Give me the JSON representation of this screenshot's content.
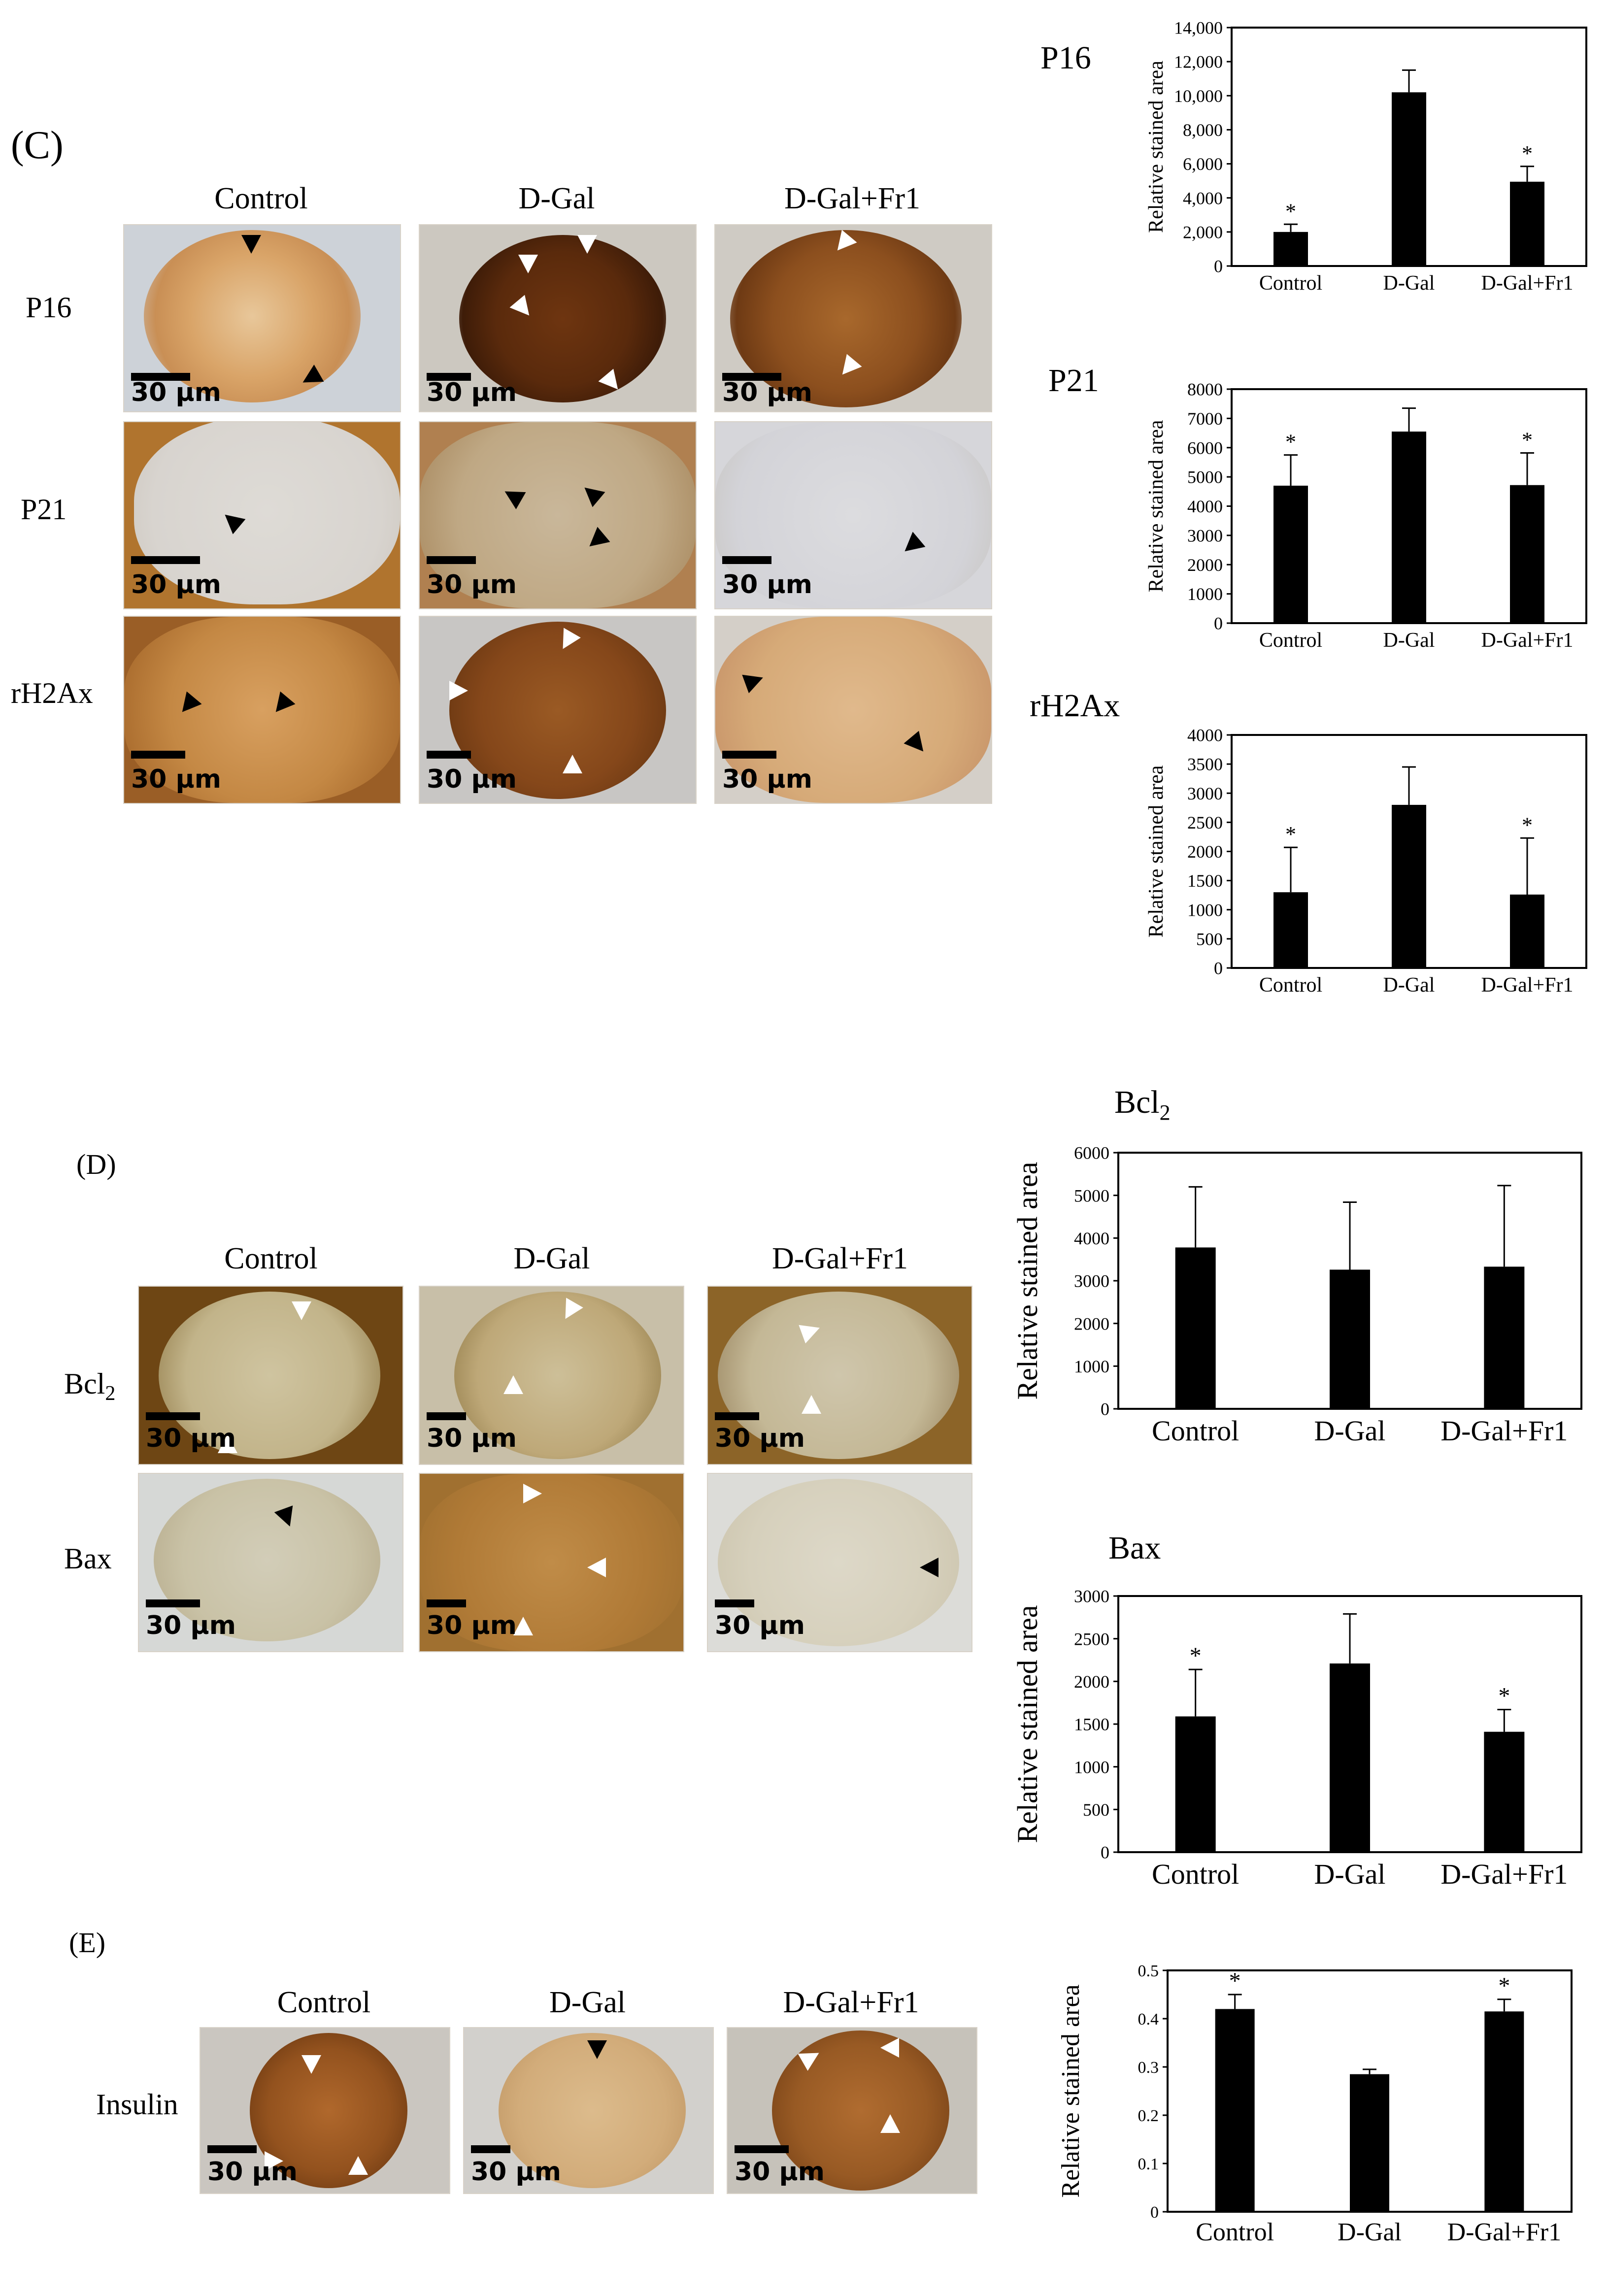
{
  "panels": {
    "C": {
      "letter": "(C)",
      "columns": [
        "Control",
        "D-Gal",
        "D-Gal+Fr1"
      ],
      "rows": [
        "P16",
        "P21",
        "rH2Ax"
      ],
      "scale_label": "30 μm"
    },
    "D": {
      "letter": "(D)",
      "columns": [
        "Control",
        "D-Gal",
        "D-Gal+Fr1"
      ],
      "rows": [
        "Bcl",
        "Bax"
      ],
      "bcl_sub": "2",
      "scale_label": "30 μm"
    },
    "E": {
      "letter": "(E)",
      "columns": [
        "Control",
        "D-Gal",
        "D-Gal+Fr1"
      ],
      "rows": [
        "Insulin"
      ],
      "scale_label": "30 μm"
    }
  },
  "chart_titles": {
    "p16": "P16",
    "p21": "P21",
    "rh2ax": "rH2Ax",
    "bcl2": "Bcl",
    "bcl2_sub": "2",
    "bax": "Bax"
  },
  "colors": {
    "bar": "#000000",
    "brown_dark": "#5a2a0c",
    "brown_mid": "#9c5a22",
    "brown_light": "#c9955a",
    "tan": "#d9c09a",
    "blue_bg": "#c8cfd9",
    "pale": "#e8e4dc"
  },
  "chart_data": [
    {
      "id": "p16",
      "type": "bar",
      "title": "P16",
      "ylabel": "Relative stained area",
      "categories": [
        "Control",
        "D-Gal",
        "D-Gal+Fr1"
      ],
      "values": [
        2000,
        10200,
        4950
      ],
      "errors": [
        450,
        1300,
        900
      ],
      "significant": [
        true,
        false,
        true
      ],
      "ylim": [
        0,
        14000
      ],
      "yticks": [
        "0",
        "2,000",
        "4,000",
        "6,000",
        "8,000",
        "10,000",
        "12,000",
        "14,000"
      ],
      "ytick_values": [
        0,
        2000,
        4000,
        6000,
        8000,
        10000,
        12000,
        14000
      ]
    },
    {
      "id": "p21",
      "type": "bar",
      "title": "P21",
      "ylabel": "Relative stained area",
      "categories": [
        "Control",
        "D-Gal",
        "D-Gal+Fr1"
      ],
      "values": [
        4700,
        6550,
        4720
      ],
      "errors": [
        1050,
        800,
        1100
      ],
      "significant": [
        true,
        false,
        true
      ],
      "ylim": [
        0,
        8000
      ],
      "yticks": [
        "0",
        "1000",
        "2000",
        "3000",
        "4000",
        "5000",
        "6000",
        "7000",
        "8000"
      ],
      "ytick_values": [
        0,
        1000,
        2000,
        3000,
        4000,
        5000,
        6000,
        7000,
        8000
      ]
    },
    {
      "id": "rh2ax",
      "type": "bar",
      "title": "rH2Ax",
      "ylabel": "Relative stained area",
      "categories": [
        "Control",
        "D-Gal",
        "D-Gal+Fr1"
      ],
      "values": [
        1300,
        2800,
        1260
      ],
      "errors": [
        770,
        650,
        970
      ],
      "significant": [
        true,
        false,
        true
      ],
      "ylim": [
        0,
        4000
      ],
      "yticks": [
        "0",
        "500",
        "1000",
        "1500",
        "2000",
        "2500",
        "3000",
        "3500",
        "4000"
      ],
      "ytick_values": [
        0,
        500,
        1000,
        1500,
        2000,
        2500,
        3000,
        3500,
        4000
      ]
    },
    {
      "id": "bcl2",
      "type": "bar",
      "title": "Bcl2",
      "ylabel": "Relative stained area",
      "categories": [
        "Control",
        "D-Gal",
        "D-Gal+Fr1"
      ],
      "values": [
        3780,
        3260,
        3330
      ],
      "errors": [
        1420,
        1580,
        1900
      ],
      "significant": [
        false,
        false,
        false
      ],
      "ylim": [
        0,
        6000
      ],
      "yticks": [
        "0",
        "1000",
        "2000",
        "3000",
        "4000",
        "5000",
        "6000"
      ],
      "ytick_values": [
        0,
        1000,
        2000,
        3000,
        4000,
        5000,
        6000
      ]
    },
    {
      "id": "bax",
      "type": "bar",
      "title": "Bax",
      "ylabel": "Relative stained area",
      "categories": [
        "Control",
        "D-Gal",
        "D-Gal+Fr1"
      ],
      "values": [
        1590,
        2210,
        1410
      ],
      "errors": [
        550,
        580,
        260
      ],
      "significant": [
        true,
        false,
        true
      ],
      "ylim": [
        0,
        3000
      ],
      "yticks": [
        "0",
        "500",
        "1000",
        "1500",
        "2000",
        "2500",
        "3000"
      ],
      "ytick_values": [
        0,
        500,
        1000,
        1500,
        2000,
        2500,
        3000
      ]
    },
    {
      "id": "insulin",
      "type": "bar",
      "title": "",
      "ylabel": "Relative stained area",
      "categories": [
        "Control",
        "D-Gal",
        "D-Gal+Fr1"
      ],
      "values": [
        0.42,
        0.285,
        0.415
      ],
      "errors": [
        0.03,
        0.01,
        0.025
      ],
      "significant": [
        true,
        false,
        true
      ],
      "ylim": [
        0,
        0.5
      ],
      "yticks": [
        "0",
        "0.1",
        "0.2",
        "0.3",
        "0.4",
        "0.5"
      ],
      "ytick_values": [
        0,
        0.1,
        0.2,
        0.3,
        0.4,
        0.5
      ]
    }
  ]
}
